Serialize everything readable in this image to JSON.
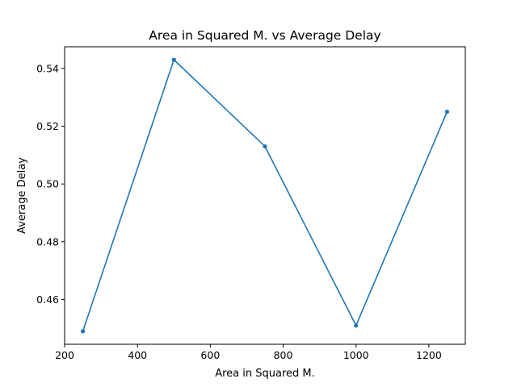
{
  "chart_data": {
    "type": "line",
    "title": "Area in Squared M. vs Average Delay",
    "xlabel": "Area in Squared M.",
    "ylabel": "Average Delay",
    "xlim": [
      200,
      1300
    ],
    "ylim": [
      0.4445,
      0.5475
    ],
    "xticks": [
      200,
      400,
      600,
      800,
      1000,
      1200
    ],
    "yticks": [
      0.46,
      0.48,
      0.5,
      0.52,
      0.54
    ],
    "ytick_labels": [
      "0.46",
      "0.48",
      "0.50",
      "0.52",
      "0.54"
    ],
    "grid": false,
    "series": [
      {
        "color": "#1f77b4",
        "marker": "point",
        "x": [
          250,
          500,
          750,
          1000,
          1250
        ],
        "y": [
          0.449,
          0.543,
          0.513,
          0.451,
          0.525
        ]
      }
    ]
  }
}
